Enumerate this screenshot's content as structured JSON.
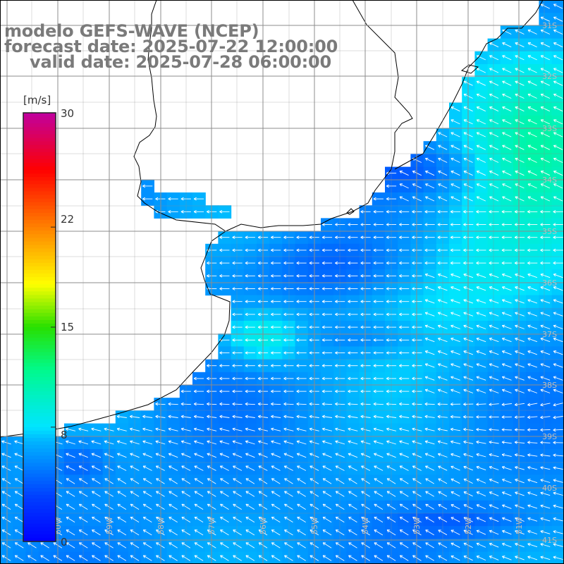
{
  "titles": {
    "model": "modelo GEFS-WAVE (NCEP)",
    "forecast": "forecast date: 2025-07-22 12:00:00",
    "valid": "valid date: 2025-07-28 06:00:00"
  },
  "colorbar": {
    "unit": "[m/s]",
    "ticks": [
      "30",
      "22",
      "15",
      "8",
      "0"
    ],
    "tick_values": [
      30,
      22,
      15,
      8,
      0
    ],
    "range": [
      0,
      30
    ],
    "colors": [
      "#0000ff",
      "#0080ff",
      "#00e5ff",
      "#00ff80",
      "#40e000",
      "#ffff00",
      "#ff8000",
      "#ff0000",
      "#e00060",
      "#c000a0"
    ]
  },
  "map": {
    "lat_labels": [
      "31S",
      "32S",
      "33S",
      "34S",
      "35S",
      "36S",
      "37S",
      "38S",
      "39S",
      "40S",
      "41S"
    ],
    "lon_labels": [
      "60W",
      "59W",
      "58W",
      "57W",
      "56W",
      "55W",
      "54W",
      "53W",
      "52W",
      "51W"
    ],
    "land_color": "#ffffff",
    "grid_color": "#8c8c8c",
    "arrow_color": "#ffffff"
  }
}
